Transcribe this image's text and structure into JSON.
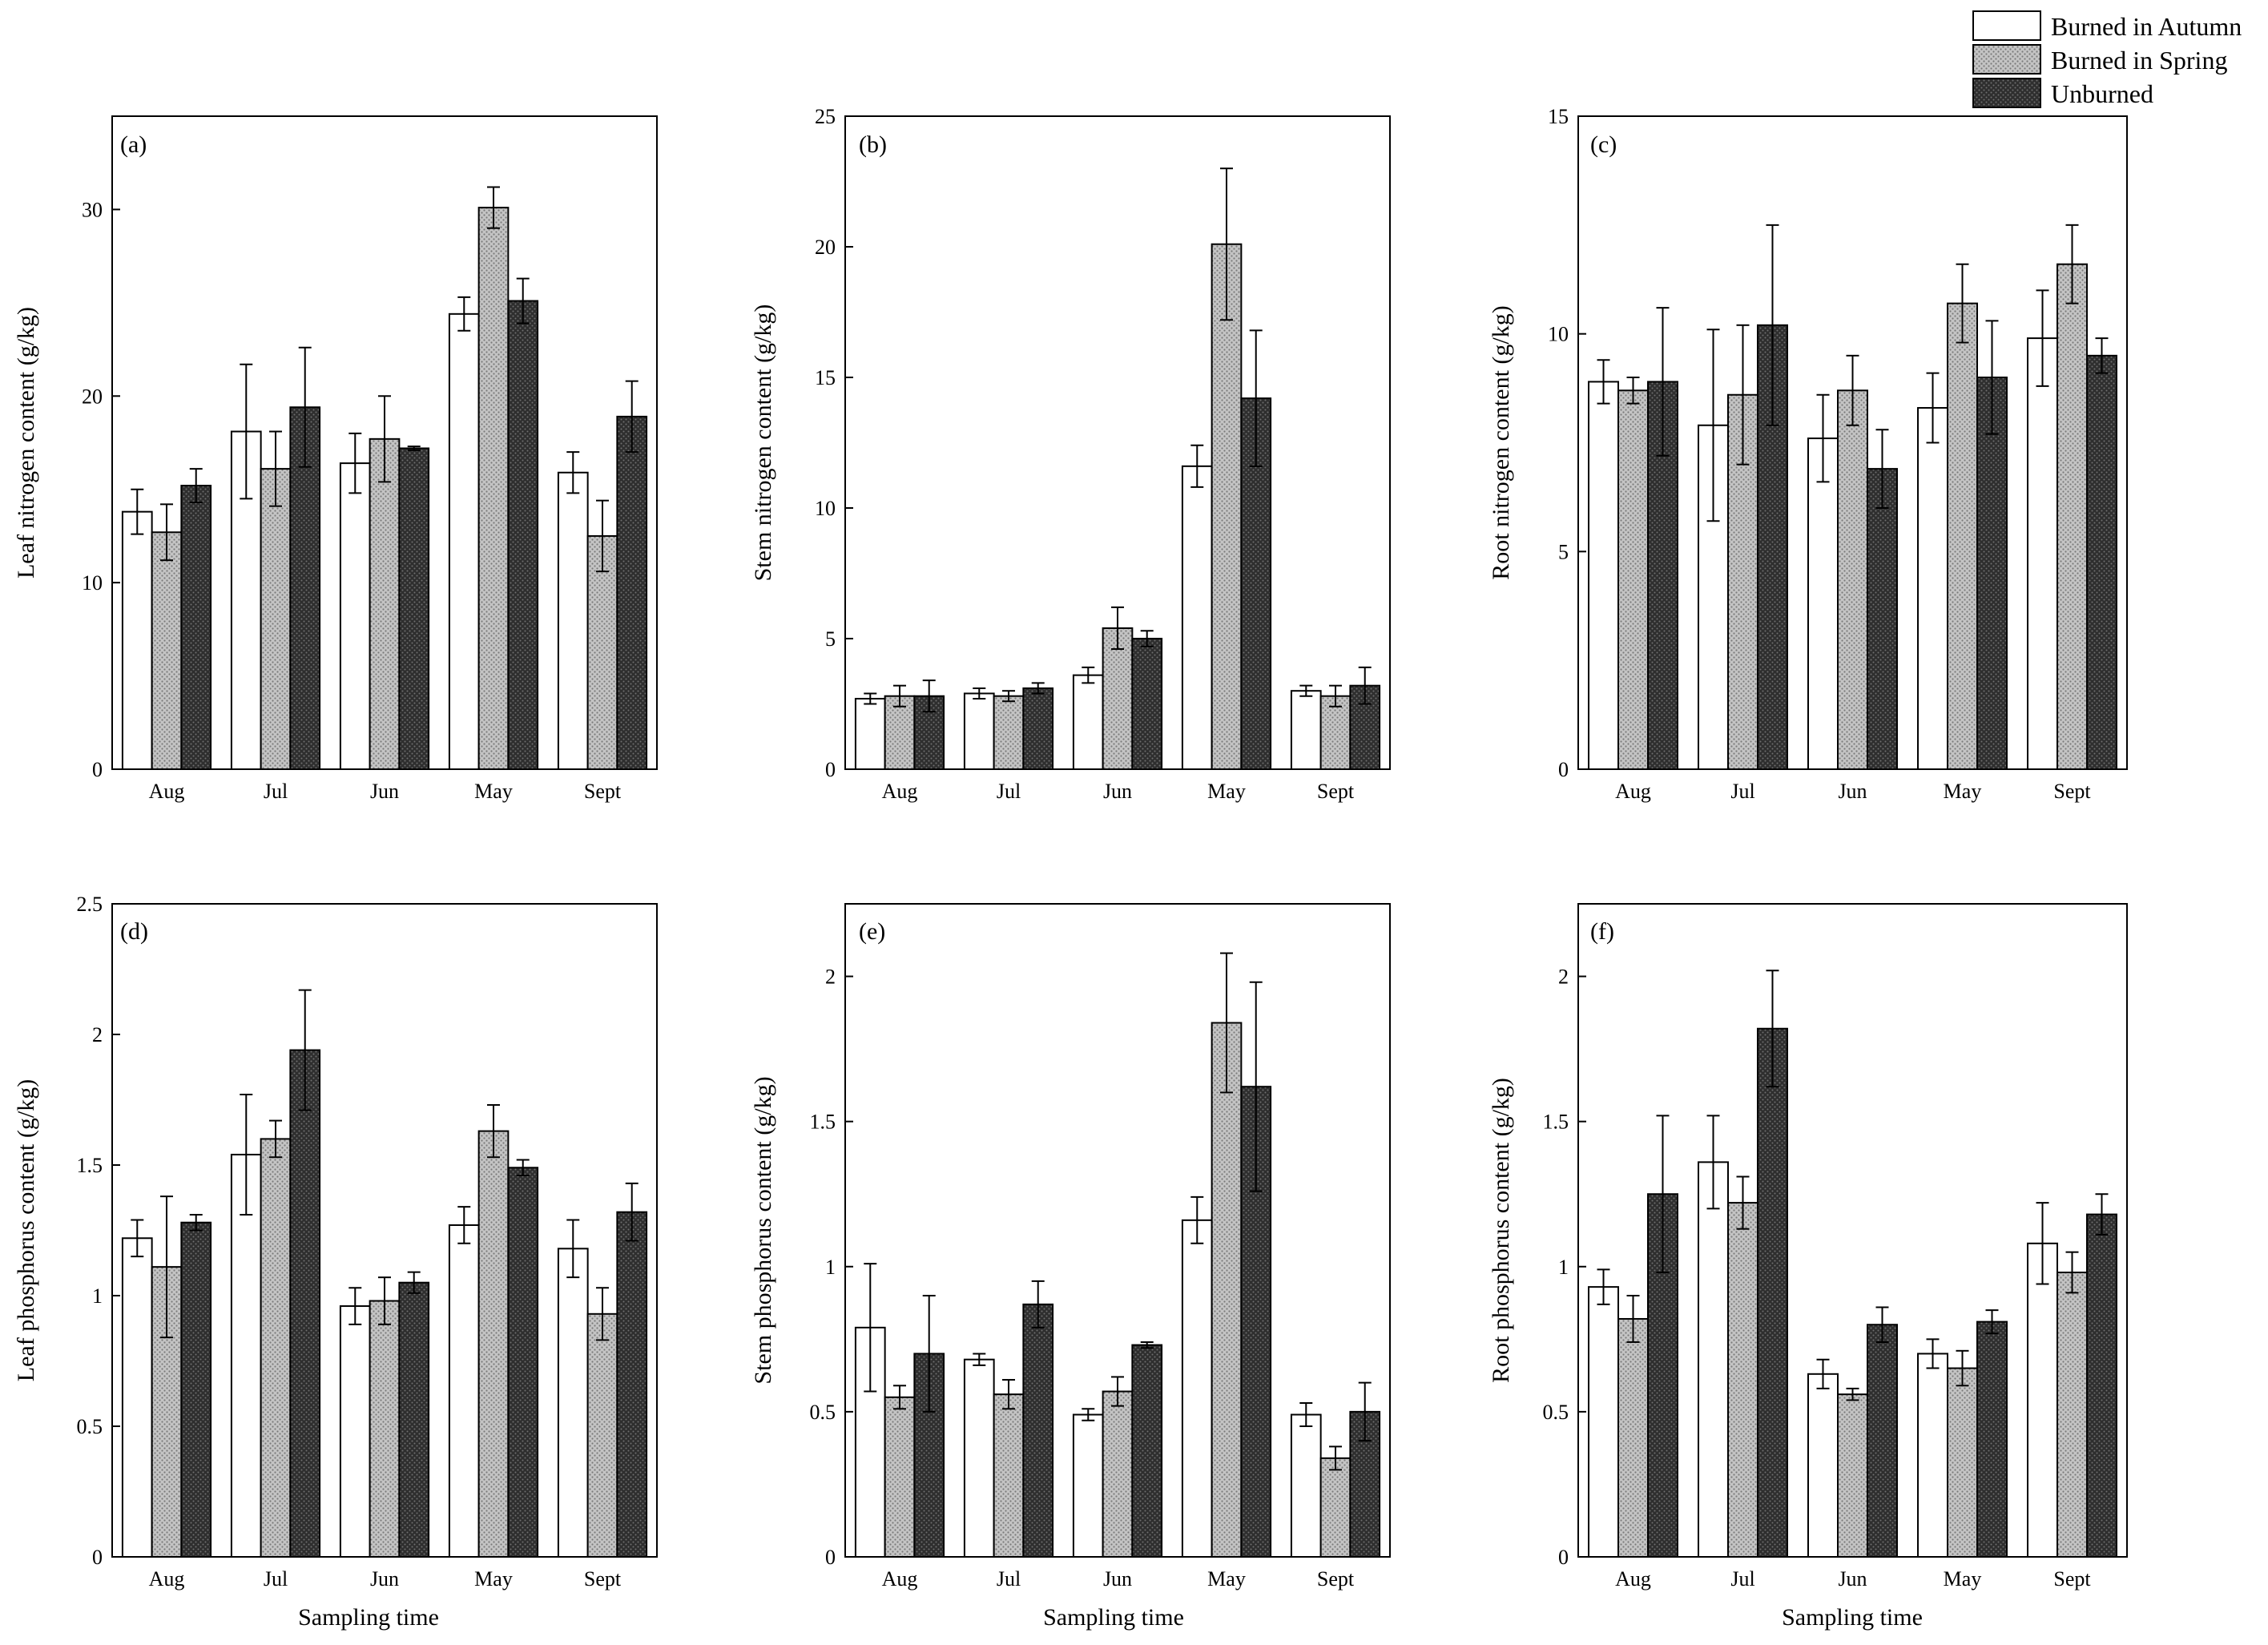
{
  "legend": {
    "entries": [
      {
        "name": "Burned in Autumn",
        "pattern": "white"
      },
      {
        "name": "Burned in Spring",
        "pattern": "grey-dots"
      },
      {
        "name": "Unburned",
        "pattern": "dark-dots"
      }
    ]
  },
  "colors": {
    "autumn_fill": "#ffffff",
    "spring_fill": "#b5b5b5",
    "unburned_fill": "#2e2e2e",
    "axis": "#000000"
  },
  "chart_data": [
    {
      "type": "bar",
      "panel_label": "(a)",
      "ylabel": "Leaf nitrogen content (g/kg)",
      "xlabel": "",
      "categories": [
        "Aug",
        "Jul",
        "Jun",
        "May",
        "Sept"
      ],
      "ylim": [
        0,
        35
      ],
      "yticks": [
        0,
        10,
        20,
        30
      ],
      "ytick_labels": [
        "0",
        "10",
        "20",
        "30"
      ],
      "series": [
        {
          "name": "Burned in Autumn",
          "values": [
            13.8,
            18.1,
            16.4,
            24.4,
            15.9
          ],
          "errors": [
            1.2,
            3.6,
            1.6,
            0.9,
            1.1
          ]
        },
        {
          "name": "Burned in Spring",
          "values": [
            12.7,
            16.1,
            17.7,
            30.1,
            12.5
          ],
          "errors": [
            1.5,
            2.0,
            2.3,
            1.1,
            1.9
          ]
        },
        {
          "name": "Unburned",
          "values": [
            15.2,
            19.4,
            17.2,
            25.1,
            18.9
          ],
          "errors": [
            0.9,
            3.2,
            0.1,
            1.2,
            1.9
          ]
        }
      ]
    },
    {
      "type": "bar",
      "panel_label": "(b)",
      "ylabel": "Stem nitrogen content (g/kg)",
      "xlabel": "",
      "categories": [
        "Aug",
        "Jul",
        "Jun",
        "May",
        "Sept"
      ],
      "ylim": [
        0,
        25
      ],
      "yticks": [
        0,
        5,
        10,
        15,
        20,
        25
      ],
      "ytick_labels": [
        "0",
        "5",
        "10",
        "15",
        "20",
        "25"
      ],
      "series": [
        {
          "name": "Burned in Autumn",
          "values": [
            2.7,
            2.9,
            3.6,
            11.6,
            3.0
          ],
          "errors": [
            0.2,
            0.2,
            0.3,
            0.8,
            0.2
          ]
        },
        {
          "name": "Burned in Spring",
          "values": [
            2.8,
            2.8,
            5.4,
            20.1,
            2.8
          ],
          "errors": [
            0.4,
            0.2,
            0.8,
            2.9,
            0.4
          ]
        },
        {
          "name": "Unburned",
          "values": [
            2.8,
            3.1,
            5.0,
            14.2,
            3.2
          ],
          "errors": [
            0.6,
            0.2,
            0.3,
            2.6,
            0.7
          ]
        }
      ]
    },
    {
      "type": "bar",
      "panel_label": "(c)",
      "ylabel": "Root nitrogen content (g/kg)",
      "xlabel": "",
      "categories": [
        "Aug",
        "Jul",
        "Jun",
        "May",
        "Sept"
      ],
      "ylim": [
        0,
        15
      ],
      "yticks": [
        0,
        5,
        10,
        15
      ],
      "ytick_labels": [
        "0",
        "5",
        "10",
        "15"
      ],
      "series": [
        {
          "name": "Burned in Autumn",
          "values": [
            8.9,
            7.9,
            7.6,
            8.3,
            9.9
          ],
          "errors": [
            0.5,
            2.2,
            1.0,
            0.8,
            1.1
          ]
        },
        {
          "name": "Burned in Spring",
          "values": [
            8.7,
            8.6,
            8.7,
            10.7,
            11.6
          ],
          "errors": [
            0.3,
            1.6,
            0.8,
            0.9,
            0.9
          ]
        },
        {
          "name": "Unburned",
          "values": [
            8.9,
            10.2,
            6.9,
            9.0,
            9.5
          ],
          "errors": [
            1.7,
            2.3,
            0.9,
            1.3,
            0.4
          ]
        }
      ]
    },
    {
      "type": "bar",
      "panel_label": "(d)",
      "ylabel": "Leaf phosphorus content (g/kg)",
      "xlabel": "Sampling time",
      "categories": [
        "Aug",
        "Jul",
        "Jun",
        "May",
        "Sept"
      ],
      "ylim": [
        0,
        2.5
      ],
      "yticks": [
        0,
        0.5,
        1,
        1.5,
        2,
        2.5
      ],
      "ytick_labels": [
        "0",
        "0.5",
        "1",
        "1.5",
        "2",
        "2.5"
      ],
      "series": [
        {
          "name": "Burned in Autumn",
          "values": [
            1.22,
            1.54,
            0.96,
            1.27,
            1.18
          ],
          "errors": [
            0.07,
            0.23,
            0.07,
            0.07,
            0.11
          ]
        },
        {
          "name": "Burned in Spring",
          "values": [
            1.11,
            1.6,
            0.98,
            1.63,
            0.93
          ],
          "errors": [
            0.27,
            0.07,
            0.09,
            0.1,
            0.1
          ]
        },
        {
          "name": "Unburned",
          "values": [
            1.28,
            1.94,
            1.05,
            1.49,
            1.32
          ],
          "errors": [
            0.03,
            0.23,
            0.04,
            0.03,
            0.11
          ]
        }
      ]
    },
    {
      "type": "bar",
      "panel_label": "(e)",
      "ylabel": "Stem phosphorus content (g/kg)",
      "xlabel": "Sampling time",
      "categories": [
        "Aug",
        "Jul",
        "Jun",
        "May",
        "Sept"
      ],
      "ylim": [
        0,
        2.25
      ],
      "yticks": [
        0,
        0.5,
        1,
        1.5,
        2
      ],
      "ytick_labels": [
        "0",
        "0.5",
        "1",
        "1.5",
        "2"
      ],
      "series": [
        {
          "name": "Burned in Autumn",
          "values": [
            0.79,
            0.68,
            0.49,
            1.16,
            0.49
          ],
          "errors": [
            0.22,
            0.02,
            0.02,
            0.08,
            0.04
          ]
        },
        {
          "name": "Burned in Spring",
          "values": [
            0.55,
            0.56,
            0.57,
            1.84,
            0.34
          ],
          "errors": [
            0.04,
            0.05,
            0.05,
            0.24,
            0.04
          ]
        },
        {
          "name": "Unburned",
          "values": [
            0.7,
            0.87,
            0.73,
            1.62,
            0.5
          ],
          "errors": [
            0.2,
            0.08,
            0.01,
            0.36,
            0.1
          ]
        }
      ]
    },
    {
      "type": "bar",
      "panel_label": "(f)",
      "ylabel": "Root phosphorus content (g/kg)",
      "xlabel": "Sampling time",
      "categories": [
        "Aug",
        "Jul",
        "Jun",
        "May",
        "Sept"
      ],
      "ylim": [
        0,
        2.25
      ],
      "yticks": [
        0,
        0.5,
        1,
        1.5,
        2
      ],
      "ytick_labels": [
        "0",
        "0.5",
        "1",
        "1.5",
        "2"
      ],
      "series": [
        {
          "name": "Burned in Autumn",
          "values": [
            0.93,
            1.36,
            0.63,
            0.7,
            1.08
          ],
          "errors": [
            0.06,
            0.16,
            0.05,
            0.05,
            0.14
          ]
        },
        {
          "name": "Burned in Spring",
          "values": [
            0.82,
            1.22,
            0.56,
            0.65,
            0.98
          ],
          "errors": [
            0.08,
            0.09,
            0.02,
            0.06,
            0.07
          ]
        },
        {
          "name": "Unburned",
          "values": [
            1.25,
            1.82,
            0.8,
            0.81,
            1.18
          ],
          "errors": [
            0.27,
            0.2,
            0.06,
            0.04,
            0.07
          ]
        }
      ]
    }
  ]
}
